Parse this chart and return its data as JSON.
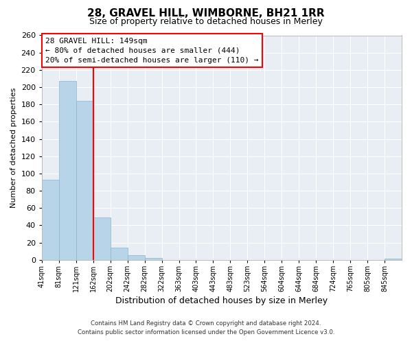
{
  "title": "28, GRAVEL HILL, WIMBORNE, BH21 1RR",
  "subtitle": "Size of property relative to detached houses in Merley",
  "xlabel": "Distribution of detached houses by size in Merley",
  "ylabel": "Number of detached properties",
  "footer_line1": "Contains HM Land Registry data © Crown copyright and database right 2024.",
  "footer_line2": "Contains public sector information licensed under the Open Government Licence v3.0.",
  "bin_labels": [
    "41sqm",
    "81sqm",
    "121sqm",
    "162sqm",
    "202sqm",
    "242sqm",
    "282sqm",
    "322sqm",
    "363sqm",
    "403sqm",
    "443sqm",
    "483sqm",
    "523sqm",
    "564sqm",
    "604sqm",
    "644sqm",
    "684sqm",
    "724sqm",
    "765sqm",
    "805sqm",
    "845sqm"
  ],
  "bar_values": [
    93,
    207,
    184,
    49,
    14,
    5,
    2,
    0,
    0,
    0,
    0,
    0,
    0,
    0,
    0,
    0,
    0,
    0,
    0,
    0,
    1
  ],
  "bar_color": "#b8d4e8",
  "bar_edgecolor": "#8ab4cc",
  "ylim": [
    0,
    260
  ],
  "yticks": [
    0,
    20,
    40,
    60,
    80,
    100,
    120,
    140,
    160,
    180,
    200,
    220,
    240,
    260
  ],
  "vline_color": "red",
  "vline_x_bin": 3,
  "annotation_text_line1": "28 GRAVEL HILL: 149sqm",
  "annotation_text_line2": "← 80% of detached houses are smaller (444)",
  "annotation_text_line3": "20% of semi-detached houses are larger (110) →",
  "annotation_box_color": "red",
  "background_color": "#e8eef4",
  "grid_color": "white",
  "title_fontsize": 11,
  "subtitle_fontsize": 9,
  "ylabel_fontsize": 8,
  "xlabel_fontsize": 9
}
